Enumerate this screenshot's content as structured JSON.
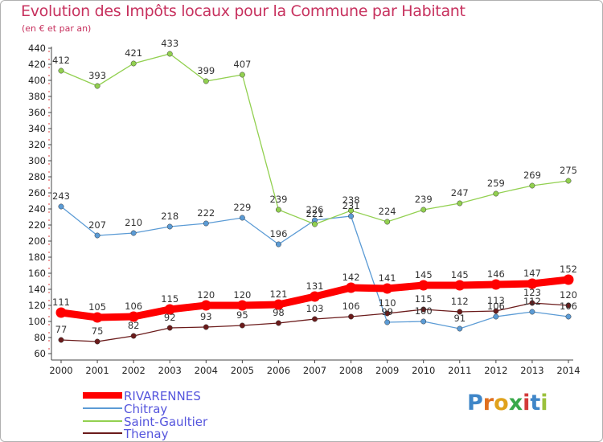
{
  "header": {
    "title": "Evolution des Impôts locaux pour la Commune par Habitant",
    "subtitle": "(en € et par an)"
  },
  "logo": {
    "text": "Proxiti",
    "letters": [
      "P",
      "r",
      "o",
      "x",
      "i",
      "t",
      "i"
    ]
  },
  "colors": {
    "rivarennes": "#ff0000",
    "chitray": "#5b9bd5",
    "saint_gaultier": "#92d050",
    "thenay": "#6b1b1b",
    "axis": "#444444",
    "grid": "#d8d8d8"
  },
  "chart_data": {
    "type": "line",
    "title": "Evolution des Impôts locaux pour la Commune par Habitant",
    "ylabel": "(en € et par an)",
    "xlabel": "",
    "ylim": [
      60,
      440
    ],
    "y_tick_step": 20,
    "grid": false,
    "legend_position": "bottom-left",
    "categories": [
      "2000",
      "2001",
      "2002",
      "2003",
      "2004",
      "2005",
      "2006",
      "2007",
      "2008",
      "2009",
      "2010",
      "2011",
      "2012",
      "2013",
      "2014"
    ],
    "series": [
      {
        "name": "RIVARENNES",
        "key": "rivarennes",
        "width": 9,
        "values": [
          111,
          105,
          106,
          115,
          120,
          120,
          121,
          131,
          142,
          141,
          145,
          145,
          146,
          147,
          152
        ]
      },
      {
        "name": "Chitray",
        "key": "chitray",
        "width": 1.3,
        "values": [
          243,
          207,
          210,
          218,
          222,
          229,
          196,
          226,
          231,
          99,
          100,
          91,
          106,
          112,
          106
        ]
      },
      {
        "name": "Saint-Gaultier",
        "key": "saint_gaultier",
        "width": 1.3,
        "values": [
          412,
          393,
          421,
          433,
          399,
          407,
          239,
          221,
          238,
          224,
          239,
          247,
          259,
          269,
          275
        ]
      },
      {
        "name": "Thenay",
        "key": "thenay",
        "width": 1.3,
        "values": [
          77,
          75,
          82,
          92,
          93,
          95,
          98,
          103,
          106,
          110,
          115,
          112,
          113,
          123,
          120
        ]
      }
    ],
    "data_labels": {
      "rivarennes": [
        "111",
        "105",
        "106",
        "115",
        "120",
        "120",
        "121",
        "131",
        "142",
        "141",
        "145",
        "145",
        "146",
        "147",
        "152"
      ],
      "chitray": [
        "243",
        "207",
        "210",
        "218",
        "222",
        "229",
        "196",
        "226",
        "231",
        "99",
        "100",
        "91",
        "106",
        "112",
        "106"
      ],
      "saint_gaultier": [
        "412",
        "393",
        "421",
        "433",
        "399",
        "407",
        "239",
        "221",
        "238",
        "224",
        "239",
        "247",
        "259",
        "269",
        "275"
      ],
      "thenay": [
        "77",
        "75",
        "82",
        "92",
        "93",
        "95",
        "98",
        "103",
        "106",
        "110",
        "115",
        "112",
        "113",
        "123",
        "120"
      ]
    }
  }
}
